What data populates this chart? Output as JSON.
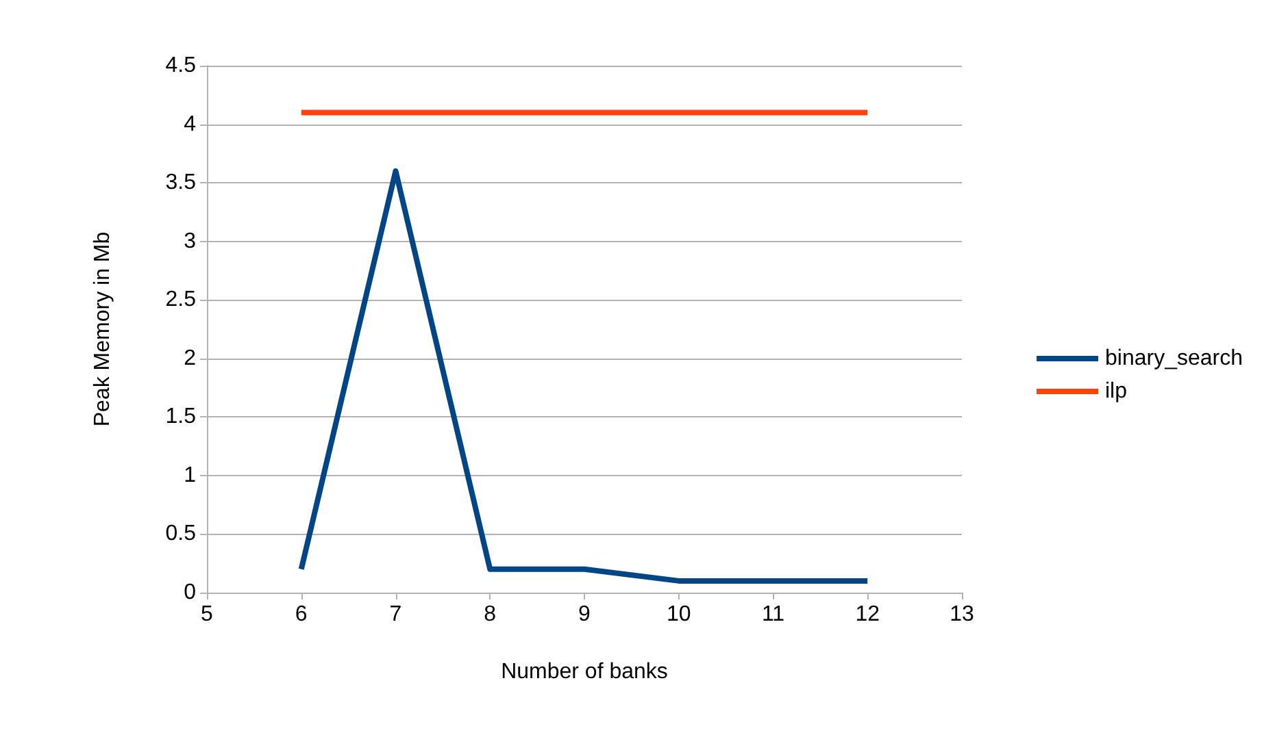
{
  "chart_data": {
    "type": "line",
    "xlabel": "Number of banks",
    "ylabel": "Peak Memory in Mb",
    "x": [
      6,
      7,
      8,
      9,
      10,
      11,
      12
    ],
    "series": [
      {
        "name": "binary_search",
        "color": "#004586",
        "values": [
          0.2,
          3.6,
          0.2,
          0.2,
          0.1,
          0.1,
          0.1
        ]
      },
      {
        "name": "ilp",
        "color": "#ff420e",
        "values": [
          4.1,
          4.1,
          4.1,
          4.1,
          4.1,
          4.1,
          4.1
        ]
      }
    ],
    "xlim": [
      5,
      13
    ],
    "xticks": [
      5,
      6,
      7,
      8,
      9,
      10,
      11,
      12,
      13
    ],
    "ylim": [
      0,
      4.5
    ],
    "yticks": [
      0,
      0.5,
      1,
      1.5,
      2,
      2.5,
      3,
      3.5,
      4,
      4.5
    ],
    "grid": "y",
    "legend": "right",
    "marker": "none",
    "line_style": "solid"
  }
}
